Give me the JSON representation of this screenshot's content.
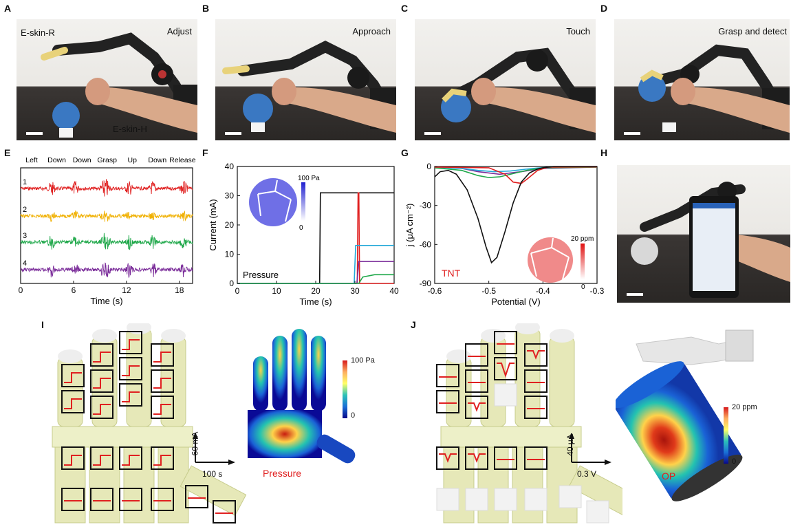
{
  "panel_letters": {
    "A": "A",
    "B": "B",
    "C": "C",
    "D": "D",
    "E": "E",
    "F": "F",
    "G": "G",
    "H": "H",
    "I": "I",
    "J": "J"
  },
  "photos": {
    "A": {
      "caption": "Adjust",
      "label_robot": "E-skin-R",
      "label_human": "E-skin-H"
    },
    "B": {
      "caption": "Approach"
    },
    "C": {
      "caption": "Touch"
    },
    "D": {
      "caption": "Grasp and detect"
    }
  },
  "colors": {
    "red": "#e02020",
    "orange": "#f0b000",
    "green": "#1fa84a",
    "purple": "#7b2d9a",
    "cyan": "#22a8d8",
    "black": "#111111"
  },
  "chart_data": [
    {
      "id": "E",
      "type": "line",
      "gestures": [
        "Left",
        "Down",
        "Down",
        "Grasp",
        "Up",
        "Down",
        "Release"
      ],
      "channel_labels": [
        "1",
        "2",
        "3",
        "4"
      ],
      "series": [
        {
          "color": "#e02020"
        },
        {
          "color": "#f0b000"
        },
        {
          "color": "#1fa84a"
        },
        {
          "color": "#7b2d9a"
        }
      ],
      "xlabel": "Time (s)",
      "xlim": [
        0,
        19.5
      ],
      "xticks": [
        0,
        6,
        12,
        18
      ]
    },
    {
      "id": "F",
      "type": "line",
      "xlabel": "Time (s)",
      "ylabel": "Current (mA)",
      "xlim": [
        0,
        40
      ],
      "ylim": [
        0,
        40
      ],
      "xticks": [
        0,
        10,
        20,
        30,
        40
      ],
      "yticks": [
        0,
        10,
        20,
        30,
        40
      ],
      "annotation": "Pressure",
      "inset_scale_max": "100 Pa",
      "inset_scale_min": "0",
      "series": [
        {
          "color": "#111111",
          "x": [
            0,
            21,
            21.2,
            40
          ],
          "y": [
            0,
            0,
            31,
            31
          ]
        },
        {
          "color": "#e02020",
          "x": [
            0,
            30.6,
            30.8,
            31.0,
            31.2,
            40
          ],
          "y": [
            0,
            0,
            31,
            31,
            0,
            0
          ]
        },
        {
          "color": "#22a8d8",
          "x": [
            0,
            29.8,
            30.2,
            40
          ],
          "y": [
            0,
            0,
            13,
            13
          ]
        },
        {
          "color": "#7b2d9a",
          "x": [
            0,
            30.5,
            31,
            40
          ],
          "y": [
            0,
            0,
            7.5,
            7.5
          ]
        },
        {
          "color": "#1fa84a",
          "x": [
            0,
            31,
            32,
            35,
            40
          ],
          "y": [
            0,
            0,
            2.2,
            3,
            3
          ]
        }
      ]
    },
    {
      "id": "G",
      "type": "line",
      "xlabel": "Potential (V)",
      "ylabel": "j (μA cm⁻²)",
      "xlim": [
        -0.6,
        -0.3
      ],
      "ylim": [
        -90,
        0
      ],
      "xticks": [
        -0.6,
        -0.5,
        -0.4,
        -0.3
      ],
      "yticks": [
        0,
        -30,
        -60,
        -90
      ],
      "xtick_labels": [
        "-0.6",
        "-0.5",
        "-0.4",
        "-0.3"
      ],
      "ytick_labels": [
        "0",
        "-30",
        "-60",
        "-90"
      ],
      "annotation": "TNT",
      "inset_scale_max": "20 ppm",
      "inset_scale_min": "0",
      "series": [
        {
          "color": "#111111",
          "x": [
            -0.6,
            -0.59,
            -0.575,
            -0.56,
            -0.54,
            -0.52,
            -0.505,
            -0.495,
            -0.485,
            -0.47,
            -0.455,
            -0.44,
            -0.425,
            -0.41,
            -0.4,
            -0.39,
            -0.38,
            -0.37,
            -0.3
          ],
          "y": [
            -8,
            -4,
            -3,
            -6,
            -18,
            -40,
            -62,
            -74,
            -70,
            -50,
            -28,
            -12,
            -5,
            -2,
            -1,
            -0.5,
            0,
            0,
            0
          ]
        },
        {
          "color": "#e02020",
          "x": [
            -0.6,
            -0.5,
            -0.47,
            -0.455,
            -0.44,
            -0.43,
            -0.41,
            -0.39,
            -0.3
          ],
          "y": [
            -0.5,
            -1,
            -6,
            -12,
            -13,
            -10,
            -3,
            -0.5,
            -0.3
          ]
        },
        {
          "color": "#1fa84a",
          "x": [
            -0.6,
            -0.55,
            -0.52,
            -0.5,
            -0.48,
            -0.45,
            -0.43,
            -0.4,
            -0.3
          ],
          "y": [
            -1,
            -3,
            -7,
            -8.5,
            -8,
            -5,
            -3,
            -1,
            -0.5
          ]
        },
        {
          "color": "#22a8d8",
          "x": [
            -0.6,
            -0.55,
            -0.52,
            -0.49,
            -0.46,
            -0.43,
            -0.4,
            -0.3
          ],
          "y": [
            -0.5,
            -1.5,
            -3,
            -4,
            -3.5,
            -2,
            -0.8,
            -0.3
          ]
        },
        {
          "color": "#7b2d9a",
          "x": [
            -0.6,
            -0.55,
            -0.52,
            -0.48,
            -0.44,
            -0.4,
            -0.3
          ],
          "y": [
            -0.5,
            -1.5,
            -4,
            -6,
            -4,
            -1.5,
            -0.5
          ]
        }
      ]
    }
  ],
  "panel_I": {
    "scale_y": "60 mA",
    "scale_x": "100 s",
    "colorbar_max": "100 Pa",
    "colorbar_min": "0",
    "map_label": "Pressure"
  },
  "panel_J": {
    "scale_y": "40 μA",
    "scale_x": "0.3 V",
    "colorbar_max": "20 ppm",
    "colorbar_min": "0",
    "map_label": "OP"
  }
}
